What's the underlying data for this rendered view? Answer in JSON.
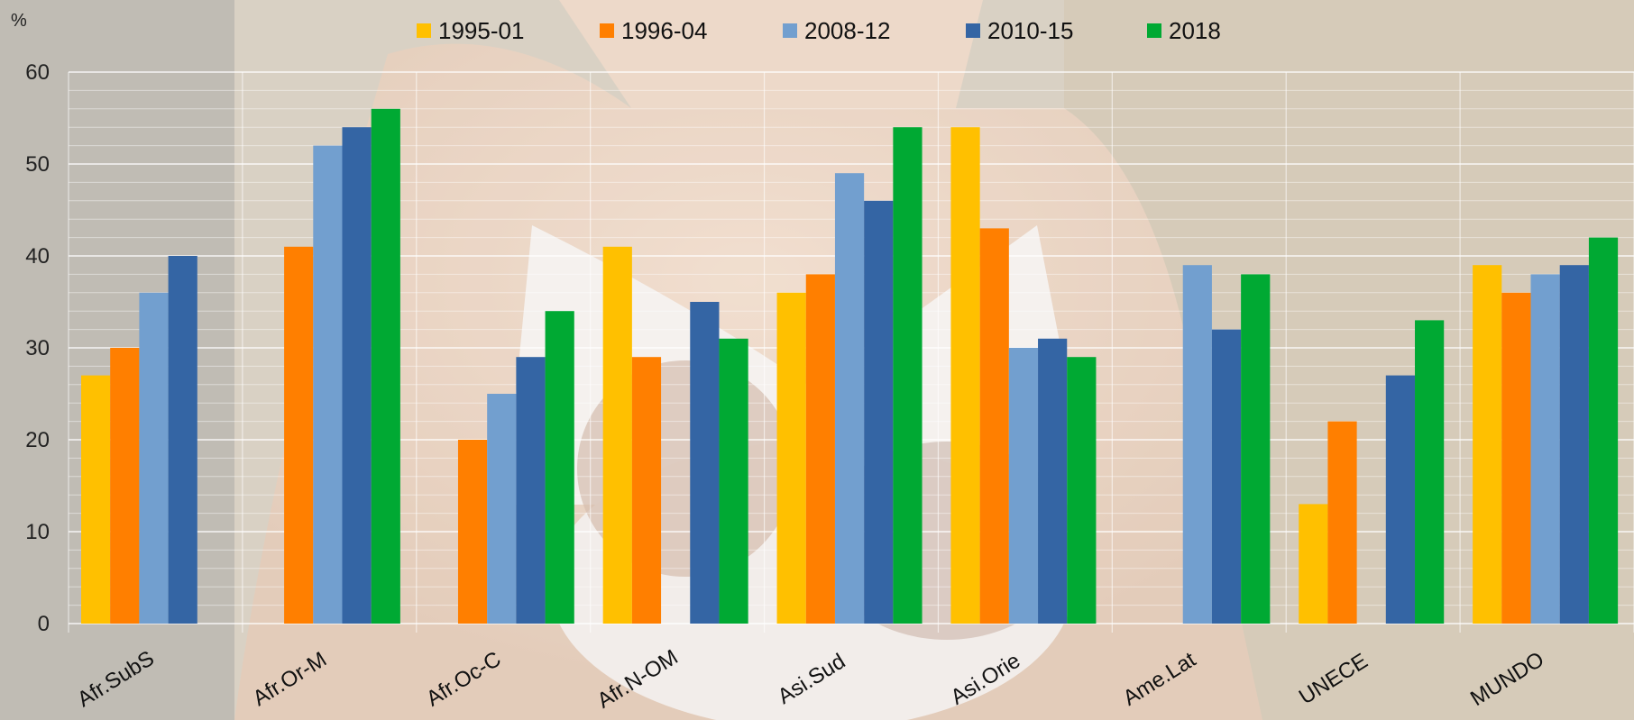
{
  "chart_data": {
    "type": "bar",
    "ylabel": "%",
    "ylim": [
      0,
      60
    ],
    "yticks": [
      0,
      10,
      20,
      30,
      40,
      50,
      60
    ],
    "grid": true,
    "legend_position": "top",
    "categories": [
      "Afr.SubS",
      "Afr.Or-M",
      "Afr.Oc-C",
      "Afr.N-OM",
      "Asi.Sud",
      "Asi.Orie",
      "Ame.Lat",
      "UNECE",
      "MUNDO"
    ],
    "series": [
      {
        "name": "1995-01",
        "color": "#ffc000",
        "values": [
          27,
          null,
          null,
          41,
          36,
          54,
          null,
          13,
          39
        ]
      },
      {
        "name": "1996-04",
        "color": "#ff7f00",
        "values": [
          30,
          41,
          20,
          29,
          38,
          43,
          null,
          22,
          36
        ]
      },
      {
        "name": "2008-12",
        "color": "#729fcf",
        "values": [
          36,
          52,
          25,
          null,
          49,
          30,
          39,
          null,
          38
        ]
      },
      {
        "name": "2010-15",
        "color": "#3465a4",
        "values": [
          40,
          54,
          29,
          35,
          46,
          31,
          32,
          27,
          39
        ]
      },
      {
        "name": "2018",
        "color": "#00a933",
        "values": [
          null,
          56,
          34,
          31,
          54,
          29,
          38,
          33,
          42
        ]
      }
    ]
  }
}
